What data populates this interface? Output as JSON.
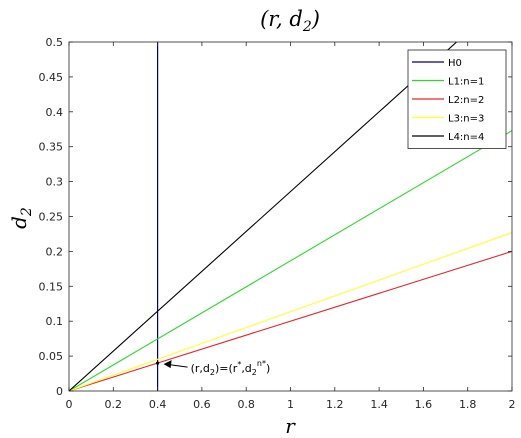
{
  "chart_data": {
    "type": "line",
    "title_tex": {
      "open": "(",
      "r": "r",
      "comma": ", ",
      "d": "d",
      "sub": "2",
      "close": ")"
    },
    "xlabel": "r",
    "ylabel": {
      "base": "d",
      "sub": "2"
    },
    "xlim": [
      0,
      2
    ],
    "ylim": [
      0,
      0.5
    ],
    "xticks": [
      "0",
      "0.2",
      "0.4",
      "0.6",
      "0.8",
      "1",
      "1.2",
      "1.4",
      "1.6",
      "1.8",
      "2"
    ],
    "yticks": [
      "0",
      "0.05",
      "0.1",
      "0.15",
      "0.2",
      "0.25",
      "0.3",
      "0.35",
      "0.4",
      "0.45",
      "0.5"
    ],
    "grid": false,
    "legend_position": "top-right",
    "series": [
      {
        "name": "H0",
        "color": "#00007f",
        "kind": "vline",
        "x": 0.4
      },
      {
        "name": "L1:n=1",
        "color": "#2ed82e",
        "kind": "line",
        "x": [
          0,
          2
        ],
        "y": [
          0,
          0.373
        ]
      },
      {
        "name": "L2:n=2",
        "color": "#e8282d",
        "kind": "line",
        "x": [
          0,
          2
        ],
        "y": [
          0,
          0.2
        ]
      },
      {
        "name": "L3:n=3",
        "color": "#ffff33",
        "kind": "line",
        "x": [
          0,
          2
        ],
        "y": [
          0,
          0.227
        ]
      },
      {
        "name": "L4:n=4",
        "color": "#000000",
        "kind": "line",
        "x": [
          0,
          1.75
        ],
        "y": [
          0,
          0.5
        ]
      }
    ],
    "annotation": {
      "point": {
        "x": 0.4,
        "y": 0.04
      },
      "text_parts": {
        "a": "(r,d",
        "a_sub": "2",
        "b": ")=(r",
        "b_sup": "*",
        "c": ",d",
        "c_sub": "2",
        "c_sup": "n*",
        "d": ")"
      }
    }
  }
}
